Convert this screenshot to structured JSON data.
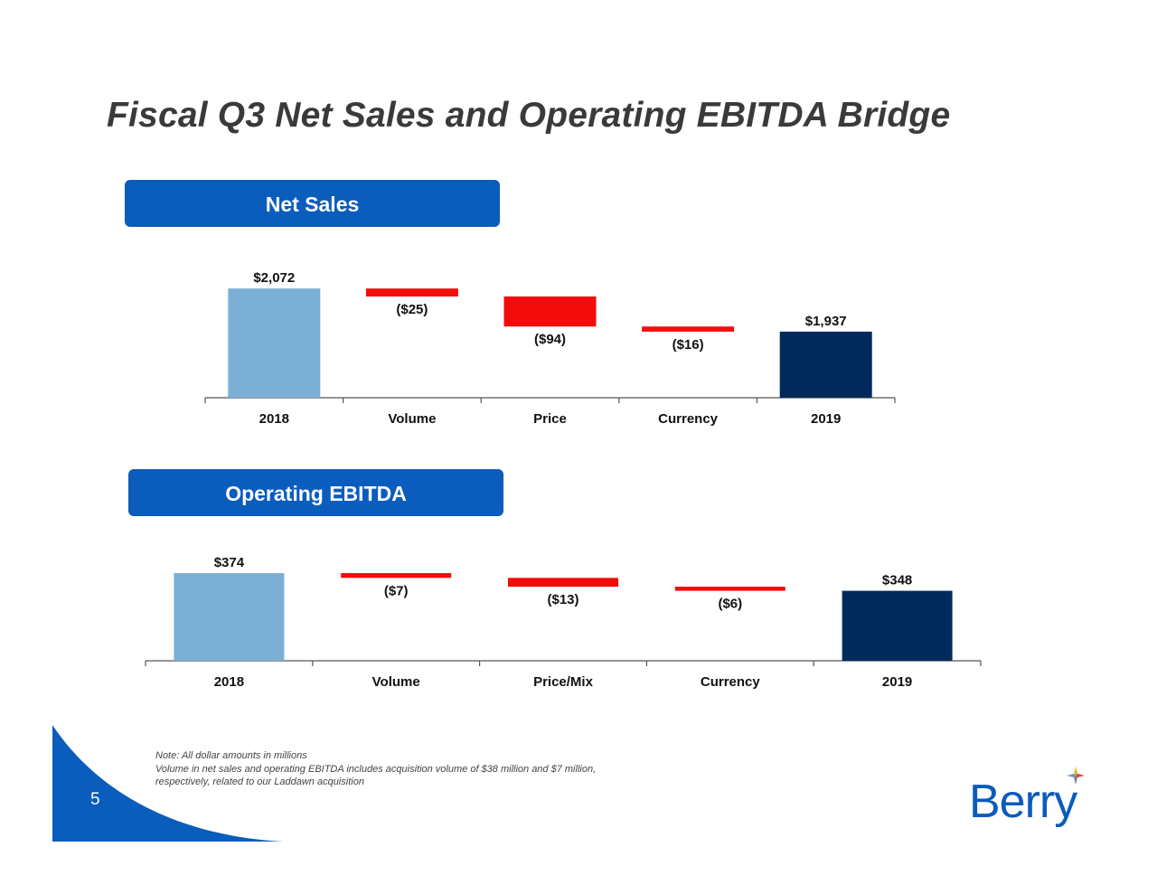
{
  "slide": {
    "title": "Fiscal Q3 Net Sales and Operating EBITDA Bridge",
    "page_number": "5",
    "notes": [
      "Note:  All dollar amounts in millions",
      "Volume in net sales and operating EBITDA includes acquisition volume of $38 million and $7 million,",
      "respectively, related to our Laddawn acquisition"
    ],
    "logo_text": "Berry"
  },
  "colors": {
    "banner": "#0a5cbd",
    "start_bar": "#7bafd6",
    "end_bar": "#002a5c",
    "decrease": "#f40b0b"
  },
  "chart_data": [
    {
      "type": "bar",
      "subtype": "waterfall",
      "title": "Net Sales",
      "categories": [
        "2018",
        "Volume",
        "Price",
        "Currency",
        "2019"
      ],
      "values": [
        2072,
        -25,
        -94,
        -16,
        1937
      ],
      "labels": [
        "$2,072",
        "($25)",
        "($94)",
        "($16)",
        "$1,937"
      ],
      "bar_kinds": [
        "total",
        "delta",
        "delta",
        "delta",
        "total"
      ]
    },
    {
      "type": "bar",
      "subtype": "waterfall",
      "title": "Operating EBITDA",
      "categories": [
        "2018",
        "Volume",
        "Price/Mix",
        "Currency",
        "2019"
      ],
      "values": [
        374,
        -7,
        -13,
        -6,
        348
      ],
      "labels": [
        "$374",
        "($7)",
        "($13)",
        "($6)",
        "$348"
      ],
      "bar_kinds": [
        "total",
        "delta",
        "delta",
        "delta",
        "total"
      ]
    }
  ]
}
